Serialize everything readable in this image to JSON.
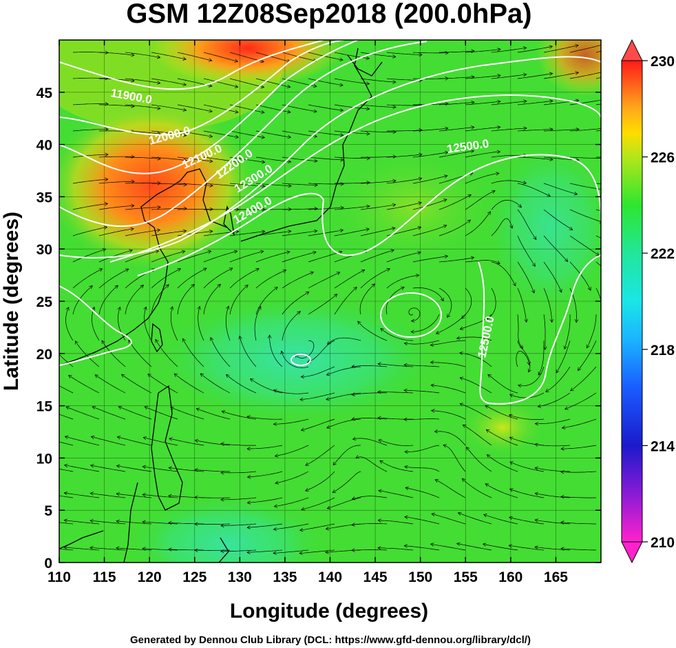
{
  "title": "GSM 12Z08Sep2018 (200.0hPa)",
  "xlabel": "Longitude (degrees)",
  "ylabel": "Latitude  (degrees)",
  "footer": "Generated by Dennou Club Library (DCL: https://www.gfd-dennou.org/library/dcl/)",
  "x_ticks": [
    "110",
    "115",
    "120",
    "125",
    "130",
    "135",
    "140",
    "145",
    "150",
    "155",
    "160",
    "165"
  ],
  "y_ticks": [
    "0",
    "5",
    "10",
    "15",
    "20",
    "25",
    "30",
    "35",
    "40",
    "45"
  ],
  "colorbar_ticks": [
    "230",
    "226",
    "222",
    "218",
    "214",
    "210"
  ],
  "contour_labels": [
    "11900.0",
    "12000.0",
    "12100.0",
    "12200.0",
    "12300.0",
    "12400.0",
    "12500.0",
    "12500.0"
  ],
  "map": {
    "lon_range": [
      110,
      170
    ],
    "lat_range": [
      0,
      50
    ],
    "variable": "temperature shading with geopotential height contours and wind streamlines",
    "colorbar_range": [
      210,
      230
    ],
    "colors": {
      "warm_max": "#ff2a1a",
      "orange": "#ff8c1a",
      "yellow": "#e6e600",
      "green": "#33dd33",
      "cyan": "#33e6cc",
      "blue": "#1a3cff",
      "magenta": "#ff22cc",
      "contour": "#ffffff",
      "streamline": "#000000"
    }
  }
}
